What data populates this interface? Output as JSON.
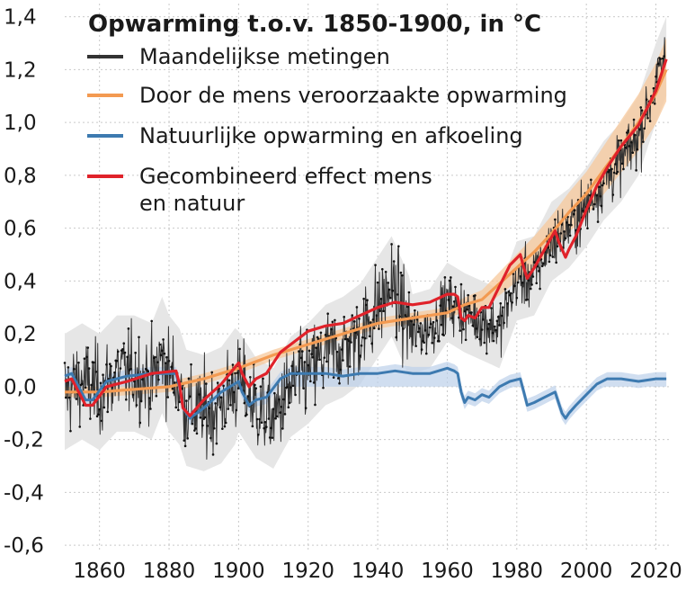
{
  "chart_data": {
    "type": "line",
    "title": "Opwarming t.o.v. 1850-1900, in °C",
    "xlabel": "",
    "ylabel": "",
    "xlim": [
      1850,
      2024
    ],
    "ylim": [
      -0.62,
      1.45
    ],
    "yticks": [
      -0.6,
      -0.4,
      -0.2,
      0.0,
      0.2,
      0.4,
      0.6,
      0.8,
      1.0,
      1.2,
      1.4
    ],
    "ytick_labels": [
      "-0,6",
      "-0,4",
      "-0,2",
      "0,0",
      "0,2",
      "0,4",
      "0,6",
      "0,8",
      "1,0",
      "1,2",
      "1,4"
    ],
    "xticks": [
      1860,
      1880,
      1900,
      1920,
      1940,
      1960,
      1980,
      2000,
      2020
    ],
    "xtick_labels": [
      "1860",
      "1880",
      "1900",
      "1920",
      "1940",
      "1960",
      "1980",
      "2000",
      "2020"
    ],
    "grid": true,
    "legend_position": "top-left",
    "series": [
      {
        "name": "Maandelijkse metingen",
        "color": "#333333",
        "style": "noisy-monthly",
        "x": [
          1850,
          1855,
          1860,
          1865,
          1870,
          1875,
          1878,
          1880,
          1883,
          1885,
          1890,
          1895,
          1900,
          1905,
          1910,
          1915,
          1920,
          1925,
          1930,
          1935,
          1940,
          1944,
          1950,
          1955,
          1960,
          1965,
          1970,
          1975,
          1980,
          1985,
          1990,
          1995,
          2000,
          2005,
          2010,
          2015,
          2020,
          2023
        ],
        "values": [
          -0.02,
          0.02,
          -0.02,
          0.05,
          0.05,
          0.02,
          0.12,
          0.05,
          0.0,
          -0.08,
          -0.1,
          -0.07,
          0.02,
          -0.08,
          -0.12,
          0.0,
          0.05,
          0.12,
          0.15,
          0.2,
          0.3,
          0.38,
          0.2,
          0.22,
          0.32,
          0.28,
          0.25,
          0.22,
          0.4,
          0.42,
          0.55,
          0.6,
          0.68,
          0.78,
          0.85,
          0.95,
          1.15,
          1.25
        ]
      },
      {
        "name": "Door de mens veroorzaakte opwarming",
        "color": "#f39a51",
        "x": [
          1850,
          1860,
          1870,
          1880,
          1890,
          1900,
          1910,
          1920,
          1930,
          1940,
          1950,
          1960,
          1965,
          1970,
          1975,
          1980,
          1985,
          1990,
          1995,
          2000,
          2005,
          2010,
          2015,
          2020,
          2023
        ],
        "values": [
          -0.02,
          -0.02,
          -0.01,
          0.0,
          0.03,
          0.07,
          0.12,
          0.16,
          0.2,
          0.24,
          0.26,
          0.28,
          0.31,
          0.33,
          0.39,
          0.45,
          0.51,
          0.58,
          0.66,
          0.73,
          0.82,
          0.91,
          1.0,
          1.11,
          1.2
        ]
      },
      {
        "name": "Natuurlijke opwarming en afkoeling",
        "color": "#3d7ab0",
        "x": [
          1850,
          1852,
          1854,
          1856,
          1858,
          1862,
          1868,
          1875,
          1882,
          1883,
          1884,
          1886,
          1890,
          1895,
          1900,
          1901,
          1903,
          1905,
          1908,
          1912,
          1915,
          1920,
          1925,
          1930,
          1935,
          1940,
          1945,
          1950,
          1955,
          1960,
          1962,
          1963,
          1964,
          1965,
          1966,
          1968,
          1970,
          1972,
          1975,
          1978,
          1981,
          1982,
          1983,
          1985,
          1988,
          1991,
          1992,
          1993,
          1994,
          1995,
          1997,
          2000,
          2003,
          2006,
          2010,
          2015,
          2020,
          2023
        ],
        "values": [
          0.04,
          0.05,
          0.0,
          -0.05,
          -0.05,
          0.02,
          0.04,
          0.05,
          0.05,
          0.0,
          -0.08,
          -0.12,
          -0.08,
          -0.02,
          0.02,
          -0.02,
          -0.07,
          -0.05,
          -0.04,
          0.03,
          0.05,
          0.05,
          0.05,
          0.04,
          0.05,
          0.05,
          0.06,
          0.05,
          0.05,
          0.07,
          0.06,
          0.05,
          -0.02,
          -0.06,
          -0.04,
          -0.05,
          -0.03,
          -0.04,
          0.0,
          0.02,
          0.03,
          -0.02,
          -0.07,
          -0.06,
          -0.04,
          -0.02,
          -0.06,
          -0.1,
          -0.12,
          -0.1,
          -0.07,
          -0.03,
          0.01,
          0.03,
          0.03,
          0.02,
          0.03,
          0.03
        ]
      },
      {
        "name": "Gecombineerd effect mens en natuur",
        "name_lines": [
          "Gecombineerd effect mens",
          "en natuur"
        ],
        "color": "#e0222a",
        "x": [
          1850,
          1852,
          1854,
          1856,
          1858,
          1862,
          1868,
          1875,
          1882,
          1883,
          1884,
          1886,
          1890,
          1895,
          1900,
          1901,
          1903,
          1905,
          1908,
          1912,
          1915,
          1920,
          1925,
          1930,
          1935,
          1940,
          1945,
          1950,
          1955,
          1960,
          1962,
          1963,
          1964,
          1965,
          1966,
          1968,
          1970,
          1972,
          1975,
          1978,
          1981,
          1982,
          1983,
          1985,
          1988,
          1991,
          1992,
          1993,
          1994,
          1995,
          1997,
          2000,
          2003,
          2006,
          2010,
          2015,
          2020,
          2023
        ],
        "values": [
          0.02,
          0.03,
          -0.02,
          -0.07,
          -0.07,
          0.0,
          0.02,
          0.05,
          0.06,
          0.01,
          -0.08,
          -0.11,
          -0.05,
          0.01,
          0.09,
          0.05,
          0.0,
          0.03,
          0.05,
          0.13,
          0.16,
          0.21,
          0.23,
          0.24,
          0.27,
          0.3,
          0.32,
          0.31,
          0.32,
          0.35,
          0.35,
          0.34,
          0.26,
          0.25,
          0.27,
          0.26,
          0.3,
          0.3,
          0.38,
          0.46,
          0.5,
          0.45,
          0.41,
          0.45,
          0.52,
          0.59,
          0.55,
          0.52,
          0.49,
          0.52,
          0.57,
          0.67,
          0.76,
          0.83,
          0.91,
          0.99,
          1.12,
          1.24
        ]
      }
    ]
  }
}
